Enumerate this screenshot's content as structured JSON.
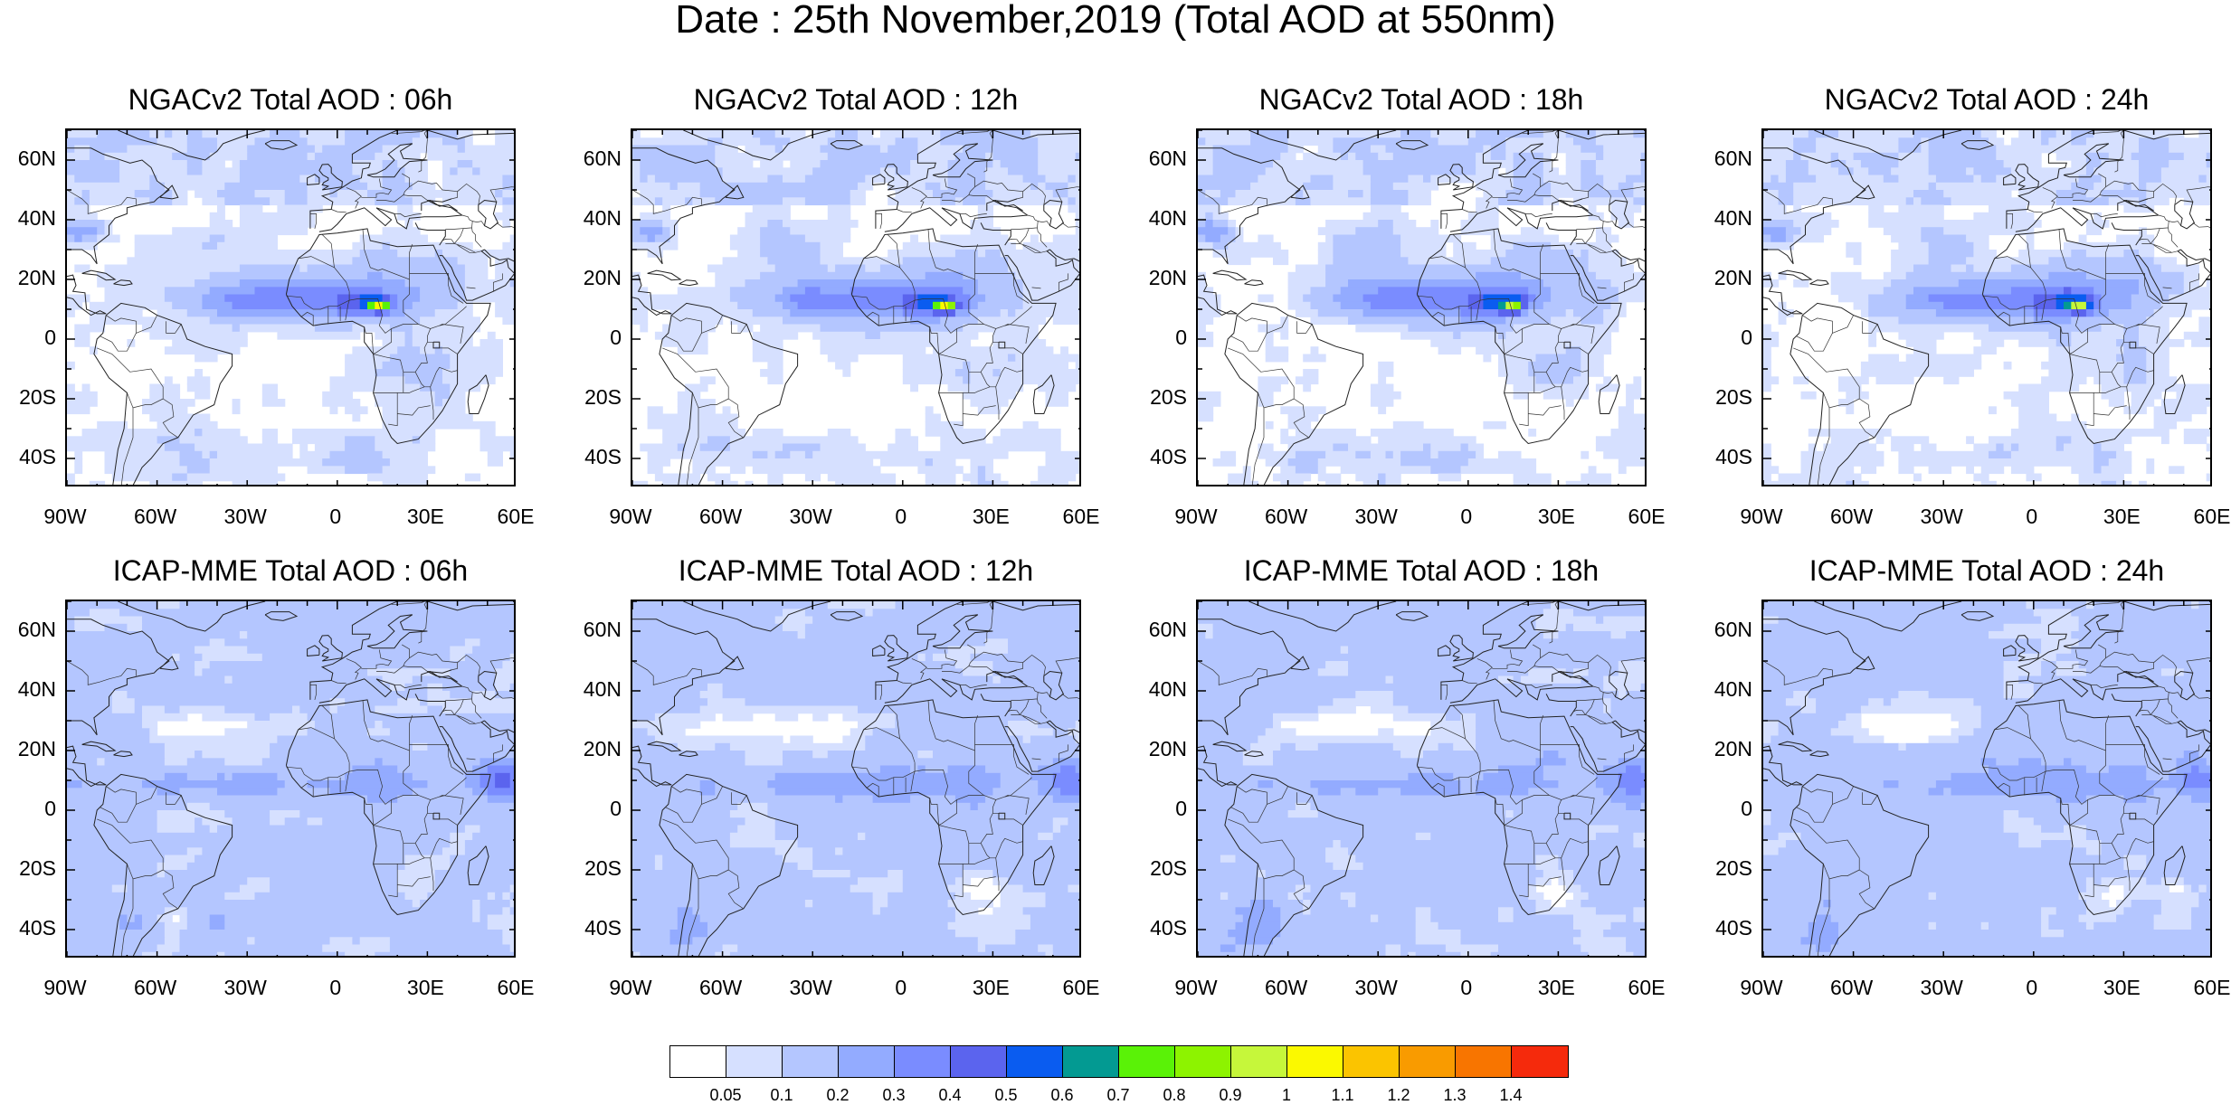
{
  "title": "Date : 25th November,2019 (Total AOD at 550nm)",
  "panels": [
    {
      "title": "NGACv2 Total AOD : 06h",
      "model": "NGACv2",
      "hour": "06h"
    },
    {
      "title": "NGACv2 Total AOD : 12h",
      "model": "NGACv2",
      "hour": "12h"
    },
    {
      "title": "NGACv2 Total AOD : 18h",
      "model": "NGACv2",
      "hour": "18h"
    },
    {
      "title": "NGACv2 Total AOD : 24h",
      "model": "NGACv2",
      "hour": "24h"
    },
    {
      "title": "ICAP-MME Total AOD : 06h",
      "model": "ICAP-MME",
      "hour": "06h"
    },
    {
      "title": "ICAP-MME Total AOD : 12h",
      "model": "ICAP-MME",
      "hour": "12h"
    },
    {
      "title": "ICAP-MME Total AOD : 18h",
      "model": "ICAP-MME",
      "hour": "18h"
    },
    {
      "title": "ICAP-MME Total AOD : 24h",
      "model": "ICAP-MME",
      "hour": "24h"
    }
  ],
  "lat_ticks": [
    "60N",
    "40N",
    "20N",
    "0",
    "20S",
    "40S"
  ],
  "lon_ticks": [
    "90W",
    "60W",
    "30W",
    "0",
    "30E",
    "60E"
  ],
  "colorbar": {
    "labels": [
      "0.05",
      "0.1",
      "0.2",
      "0.3",
      "0.4",
      "0.5",
      "0.6",
      "0.7",
      "0.8",
      "0.9",
      "1",
      "1.1",
      "1.2",
      "1.3",
      "1.4"
    ],
    "colors": [
      "#ffffff",
      "#d6e0ff",
      "#b4c6ff",
      "#93abff",
      "#7a8cff",
      "#5b64ee",
      "#0a5cf0",
      "#039a92",
      "#5af207",
      "#8df300",
      "#c6f73a",
      "#fbf900",
      "#fbc400",
      "#f99b00",
      "#f87500",
      "#f52a0c"
    ]
  }
}
